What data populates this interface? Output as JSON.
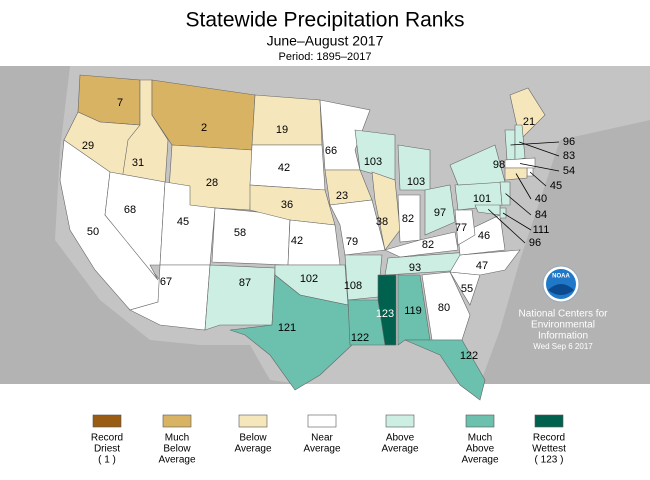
{
  "header": {
    "title": "Statewide Precipitation Ranks",
    "subtitle": "June–August 2017",
    "period": "Period: 1895–2017"
  },
  "legend": [
    {
      "lines": [
        "Record",
        "Driest",
        "( 1 )"
      ],
      "color": "#9a5b13"
    },
    {
      "lines": [
        "Much",
        "Below",
        "Average"
      ],
      "color": "#d9b364"
    },
    {
      "lines": [
        "Below",
        "Average"
      ],
      "color": "#f6e6bc"
    },
    {
      "lines": [
        "Near",
        "Average"
      ],
      "color": "#ffffff"
    },
    {
      "lines": [
        "Above",
        "Average"
      ],
      "color": "#cdeee2"
    },
    {
      "lines": [
        "Much",
        "Above",
        "Average"
      ],
      "color": "#6cc0ae"
    },
    {
      "lines": [
        "Record",
        "Wettest",
        "( 123 )"
      ],
      "color": "#00614e"
    }
  ],
  "states": [
    {
      "rank": 7,
      "legend": 1
    },
    {
      "rank": 29,
      "legend": 2
    },
    {
      "rank": 31,
      "legend": 2
    },
    {
      "rank": 2,
      "legend": 1
    },
    {
      "rank": 28,
      "legend": 2
    },
    {
      "rank": 50,
      "legend": 3
    },
    {
      "rank": 68,
      "legend": 3
    },
    {
      "rank": 45,
      "legend": 3
    },
    {
      "rank": 67,
      "legend": 3
    },
    {
      "rank": 58,
      "legend": 3
    },
    {
      "rank": 87,
      "legend": 4
    },
    {
      "rank": 19,
      "legend": 2
    },
    {
      "rank": 42,
      "legend": 3
    },
    {
      "rank": 36,
      "legend": 2
    },
    {
      "rank": 42,
      "legend": 3
    },
    {
      "rank": 102,
      "legend": 4
    },
    {
      "rank": 121,
      "legend": 5
    },
    {
      "rank": 66,
      "legend": 3
    },
    {
      "rank": 23,
      "legend": 2
    },
    {
      "rank": 79,
      "legend": 3
    },
    {
      "rank": 108,
      "legend": 4
    },
    {
      "rank": 122,
      "legend": 5
    },
    {
      "rank": 103,
      "legend": 4
    },
    {
      "rank": 38,
      "legend": 2
    },
    {
      "rank": 103,
      "legend": 4
    },
    {
      "rank": 82,
      "legend": 3
    },
    {
      "rank": 97,
      "legend": 4
    },
    {
      "rank": 82,
      "legend": 3
    },
    {
      "rank": 93,
      "legend": 4
    },
    {
      "rank": 123,
      "legend": 6
    },
    {
      "rank": 119,
      "legend": 5
    },
    {
      "rank": 80,
      "legend": 3
    },
    {
      "rank": 122,
      "legend": 5
    },
    {
      "rank": 55,
      "legend": 3
    },
    {
      "rank": 47,
      "legend": 3
    },
    {
      "rank": 46,
      "legend": 3
    },
    {
      "rank": 77,
      "legend": 3
    },
    {
      "rank": 101,
      "legend": 4
    },
    {
      "rank": 98,
      "legend": 4
    },
    {
      "rank": 21,
      "legend": 2
    },
    {
      "rank": 96,
      "legend": 4
    },
    {
      "rank": 83,
      "legend": 4
    },
    {
      "rank": 54,
      "legend": 3
    },
    {
      "rank": 45,
      "legend": 3
    },
    {
      "rank": 40,
      "legend": 2
    },
    {
      "rank": 84,
      "legend": 4
    },
    {
      "rank": 111,
      "legend": 4
    },
    {
      "rank": 96,
      "legend": 4
    }
  ],
  "logo": "NOAA",
  "credits": [
    "National Centers for",
    "Environmental",
    "Information",
    "Wed Sep  6 2017"
  ]
}
